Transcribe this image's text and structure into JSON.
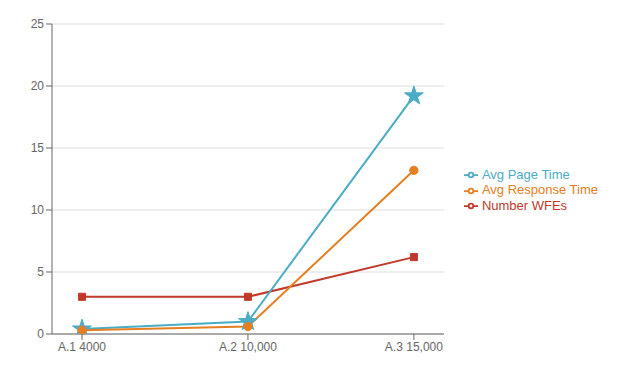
{
  "chart_data": {
    "type": "line",
    "categories": [
      "A.1 4000",
      "A.2 10,000",
      "A.3 15,000"
    ],
    "series": [
      {
        "name": "Number WFEs",
        "color": "#C0392B",
        "marker": "square",
        "values": [
          3.0,
          3.0,
          6.2
        ]
      },
      {
        "name": "Avg Page Time",
        "color": "#4BACC6",
        "marker": "star",
        "values": [
          0.4,
          1.0,
          19.2
        ]
      },
      {
        "name": "Avg Response Time",
        "color": "#E67E22",
        "marker": "circle",
        "values": [
          0.3,
          0.6,
          13.2
        ]
      }
    ],
    "ylim": [
      0,
      25
    ],
    "yticks": [
      0,
      5,
      10,
      15,
      20,
      25
    ],
    "grid": true,
    "legend": "right"
  }
}
